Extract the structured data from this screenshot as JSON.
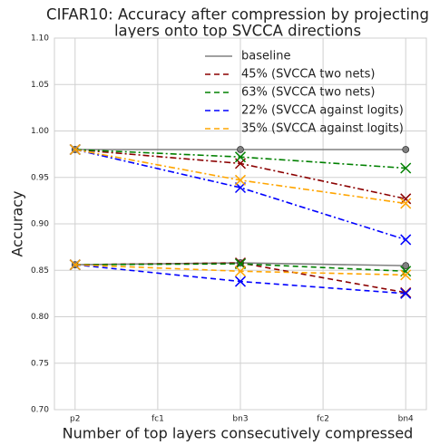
{
  "chart_data": {
    "type": "line",
    "title": [
      "CIFAR10: Accuracy after compression by projecting",
      "layers onto top SVCCA directions"
    ],
    "xlabel": "Number of top layers consecutively compressed",
    "ylabel": "Accuracy",
    "x": [
      0,
      2,
      4
    ],
    "xlim": [
      -0.25,
      4.25
    ],
    "xticks": [
      {
        "value": 0,
        "label": "p2"
      },
      {
        "value": 1,
        "label": "fc1"
      },
      {
        "value": 2,
        "label": "bn3"
      },
      {
        "value": 3,
        "label": "fc2"
      },
      {
        "value": 4,
        "label": "bn4"
      }
    ],
    "ylim": [
      0.7,
      1.1
    ],
    "yticks": [
      {
        "value": 0.7,
        "label": "0.70"
      },
      {
        "value": 0.75,
        "label": "0.75"
      },
      {
        "value": 0.8,
        "label": "0.80"
      },
      {
        "value": 0.85,
        "label": "0.85"
      },
      {
        "value": 0.9,
        "label": "0.90"
      },
      {
        "value": 0.95,
        "label": "0.95"
      },
      {
        "value": 1.0,
        "label": "1.00"
      },
      {
        "value": 1.05,
        "label": "1.05"
      },
      {
        "value": 1.1,
        "label": "1.10"
      }
    ],
    "grid": true,
    "legend": "upper right",
    "series": [
      {
        "name": "baseline",
        "color": "#808080",
        "dash": "solid",
        "marker": "o",
        "values": [
          0.856,
          0.858,
          0.855
        ]
      },
      {
        "name": "45% (SVCCA two nets)",
        "color": "#8b0000",
        "dash": "dashed",
        "marker": "x",
        "values": [
          0.856,
          0.858,
          0.826
        ]
      },
      {
        "name": "63% (SVCCA two nets)",
        "color": "#008000",
        "dash": "dashed",
        "marker": "x",
        "values": [
          0.856,
          0.857,
          0.849
        ]
      },
      {
        "name": "22% (SVCCA against logits)",
        "color": "#0000ff",
        "dash": "dashed",
        "marker": "x",
        "values": [
          0.856,
          0.838,
          0.825
        ]
      },
      {
        "name": "35% (SVCCA against logits)",
        "color": "#ffa500",
        "dash": "dashed",
        "marker": "x",
        "values": [
          0.856,
          0.849,
          0.845
        ]
      },
      {
        "color": "#808080",
        "dash": "solid",
        "marker": "o",
        "values": [
          0.98,
          0.98,
          0.98
        ]
      },
      {
        "color": "#8b0000",
        "dash": "dashdot",
        "marker": "x",
        "values": [
          0.98,
          0.965,
          0.927
        ]
      },
      {
        "color": "#008000",
        "dash": "dashdot",
        "marker": "x",
        "values": [
          0.98,
          0.972,
          0.96
        ]
      },
      {
        "color": "#0000ff",
        "dash": "dashdot",
        "marker": "x",
        "values": [
          0.98,
          0.939,
          0.883
        ]
      },
      {
        "color": "#ffa500",
        "dash": "dashdot",
        "marker": "x",
        "values": [
          0.98,
          0.947,
          0.922
        ]
      }
    ]
  }
}
